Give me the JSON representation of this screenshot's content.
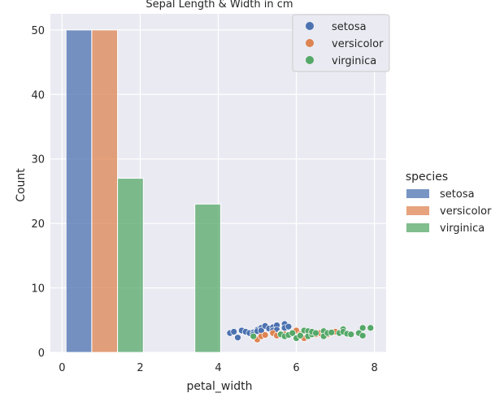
{
  "chart_data": {
    "type": "bar",
    "title": "Sepal Length & Width in cm",
    "xlabel": "petal_width",
    "ylabel": "Count",
    "xlim": [
      -0.3,
      8.3
    ],
    "ylim": [
      0,
      52.5
    ],
    "xticks": [
      0,
      2,
      4,
      6,
      8
    ],
    "yticks": [
      0,
      10,
      20,
      30,
      40,
      50
    ],
    "grid": true,
    "bars": [
      {
        "series": "setosa",
        "x0": 0.1,
        "x1": 0.76,
        "value": 50
      },
      {
        "series": "versicolor",
        "x0": 0.76,
        "x1": 1.42,
        "value": 50
      },
      {
        "series": "virginica",
        "x0": 1.42,
        "x1": 2.08,
        "value": 27
      },
      {
        "series": "virginica",
        "x0": 3.4,
        "x1": 4.06,
        "value": 23
      }
    ],
    "scatter_legend": {
      "placement": "top-right",
      "entries": [
        {
          "name": "setosa",
          "color": "#4c72b0"
        },
        {
          "name": "versicolor",
          "color": "#dd8452"
        },
        {
          "name": "virginica",
          "color": "#55a868"
        }
      ]
    },
    "hist_legend": {
      "placement": "right",
      "title": "species",
      "entries": [
        {
          "name": "setosa",
          "color": "#4c72b0"
        },
        {
          "name": "versicolor",
          "color": "#dd8452"
        },
        {
          "name": "virginica",
          "color": "#55a868"
        }
      ]
    },
    "scatter": [
      {
        "series": "setosa",
        "points": [
          [
            4.3,
            3.0
          ],
          [
            4.4,
            3.2
          ],
          [
            4.5,
            2.3
          ],
          [
            4.6,
            3.4
          ],
          [
            4.7,
            3.2
          ],
          [
            4.8,
            3.0
          ],
          [
            4.9,
            3.1
          ],
          [
            4.9,
            2.8
          ],
          [
            5.0,
            3.5
          ],
          [
            5.0,
            3.3
          ],
          [
            5.1,
            3.8
          ],
          [
            5.1,
            3.4
          ],
          [
            5.2,
            4.1
          ],
          [
            5.3,
            3.7
          ],
          [
            5.4,
            3.9
          ],
          [
            5.4,
            3.4
          ],
          [
            5.5,
            4.2
          ],
          [
            5.5,
            3.5
          ],
          [
            5.7,
            4.4
          ],
          [
            5.7,
            3.8
          ],
          [
            5.8,
            4.0
          ],
          [
            5.6,
            3.0
          ]
        ]
      },
      {
        "series": "versicolor",
        "points": [
          [
            4.9,
            2.4
          ],
          [
            5.0,
            2.0
          ],
          [
            5.1,
            2.5
          ],
          [
            5.2,
            2.7
          ],
          [
            5.4,
            3.0
          ],
          [
            5.5,
            2.6
          ],
          [
            5.6,
            2.9
          ],
          [
            5.7,
            2.8
          ],
          [
            5.8,
            2.7
          ],
          [
            5.9,
            3.0
          ],
          [
            6.0,
            2.2
          ],
          [
            6.0,
            3.4
          ],
          [
            6.1,
            2.8
          ],
          [
            6.2,
            2.2
          ],
          [
            6.3,
            2.5
          ],
          [
            6.4,
            3.2
          ],
          [
            6.5,
            2.8
          ],
          [
            6.6,
            3.0
          ],
          [
            6.7,
            3.1
          ],
          [
            6.8,
            2.8
          ],
          [
            6.9,
            3.1
          ],
          [
            7.0,
            3.2
          ]
        ]
      },
      {
        "series": "virginica",
        "points": [
          [
            4.9,
            2.5
          ],
          [
            5.6,
            2.8
          ],
          [
            5.7,
            2.5
          ],
          [
            5.8,
            2.7
          ],
          [
            5.9,
            3.0
          ],
          [
            6.0,
            2.2
          ],
          [
            6.1,
            2.6
          ],
          [
            6.2,
            3.4
          ],
          [
            6.3,
            3.3
          ],
          [
            6.3,
            2.5
          ],
          [
            6.4,
            2.8
          ],
          [
            6.4,
            3.2
          ],
          [
            6.5,
            3.0
          ],
          [
            6.7,
            3.3
          ],
          [
            6.7,
            2.5
          ],
          [
            6.8,
            3.0
          ],
          [
            6.9,
            3.1
          ],
          [
            7.1,
            3.0
          ],
          [
            7.2,
            3.6
          ],
          [
            7.2,
            3.2
          ],
          [
            7.3,
            2.9
          ],
          [
            7.4,
            2.8
          ],
          [
            7.6,
            3.0
          ],
          [
            7.7,
            3.8
          ],
          [
            7.7,
            2.6
          ],
          [
            7.9,
            3.8
          ]
        ]
      }
    ]
  }
}
